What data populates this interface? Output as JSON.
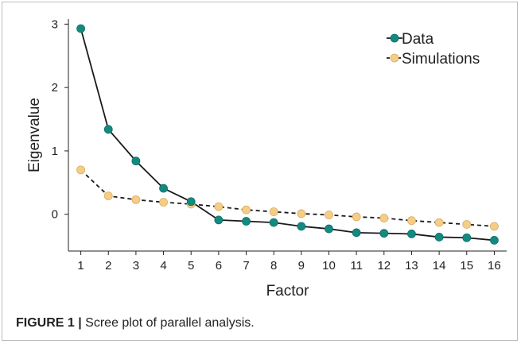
{
  "chart_data": {
    "type": "line",
    "x": [
      1,
      2,
      3,
      4,
      5,
      6,
      7,
      8,
      9,
      10,
      11,
      12,
      13,
      14,
      15,
      16
    ],
    "series": [
      {
        "name": "Data",
        "values": [
          2.93,
          1.34,
          0.84,
          0.41,
          0.2,
          -0.09,
          -0.11,
          -0.13,
          -0.19,
          -0.23,
          -0.29,
          -0.3,
          -0.31,
          -0.36,
          -0.37,
          -0.41
        ],
        "color": "#138a80",
        "line": "solid",
        "line_color": "#1a1a1a"
      },
      {
        "name": "Simulations",
        "values": [
          0.7,
          0.29,
          0.23,
          0.19,
          0.16,
          0.12,
          0.07,
          0.04,
          0.01,
          -0.01,
          -0.04,
          -0.06,
          -0.1,
          -0.13,
          -0.16,
          -0.19
        ],
        "color": "#f5cd87",
        "line": "dashed",
        "line_color": "#1a1a1a"
      }
    ],
    "xlabel": "Factor",
    "ylabel": "Eigenvalue",
    "yticks": [
      0,
      1,
      2,
      3
    ],
    "xlim": [
      0.55,
      16.45
    ],
    "ylim": [
      -0.58,
      3.08
    ],
    "grid": false,
    "legend_position": "top-right"
  },
  "caption": {
    "label": "FIGURE 1 |",
    "text": " Scree plot of parallel analysis."
  }
}
